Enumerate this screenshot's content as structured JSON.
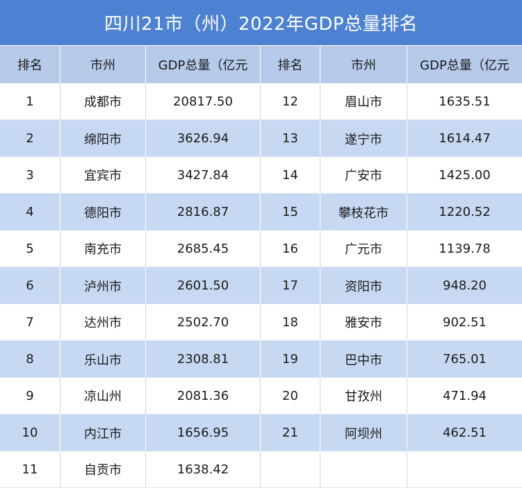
{
  "chart_data": {
    "type": "table",
    "title": "四川21市（州）2022年GDP总量排名",
    "columns": [
      "排名",
      "市州",
      "GDP总量（亿元",
      "排名",
      "市州",
      "GDP总量（亿元"
    ],
    "rows": [
      [
        "1",
        "成都市",
        "20817.50",
        "12",
        "眉山市",
        "1635.51"
      ],
      [
        "2",
        "绵阳市",
        "3626.94",
        "13",
        "遂宁市",
        "1614.47"
      ],
      [
        "3",
        "宜宾市",
        "3427.84",
        "14",
        "广安市",
        "1425.00"
      ],
      [
        "4",
        "德阳市",
        "2816.87",
        "15",
        "攀枝花市",
        "1220.52"
      ],
      [
        "5",
        "南充市",
        "2685.45",
        "16",
        "广元市",
        "1139.78"
      ],
      [
        "6",
        "泸州市",
        "2601.50",
        "17",
        "资阳市",
        "948.20"
      ],
      [
        "7",
        "达州市",
        "2502.70",
        "18",
        "雅安市",
        "902.51"
      ],
      [
        "8",
        "乐山市",
        "2308.81",
        "19",
        "巴中市",
        "765.01"
      ],
      [
        "9",
        "凉山州",
        "2081.36",
        "20",
        "甘孜州",
        "471.94"
      ],
      [
        "10",
        "内江市",
        "1656.95",
        "21",
        "阿坝州",
        "462.51"
      ],
      [
        "11",
        "自贡市",
        "1638.42",
        "",
        "",
        ""
      ]
    ]
  },
  "colors": {
    "title_bg": "#4d82d2",
    "header_bg": "#b6cbea",
    "stripe_bg": "#c7d9f2",
    "row_bg": "#ffffff",
    "title_text": "#ffffff",
    "text": "#1a1a1a"
  }
}
